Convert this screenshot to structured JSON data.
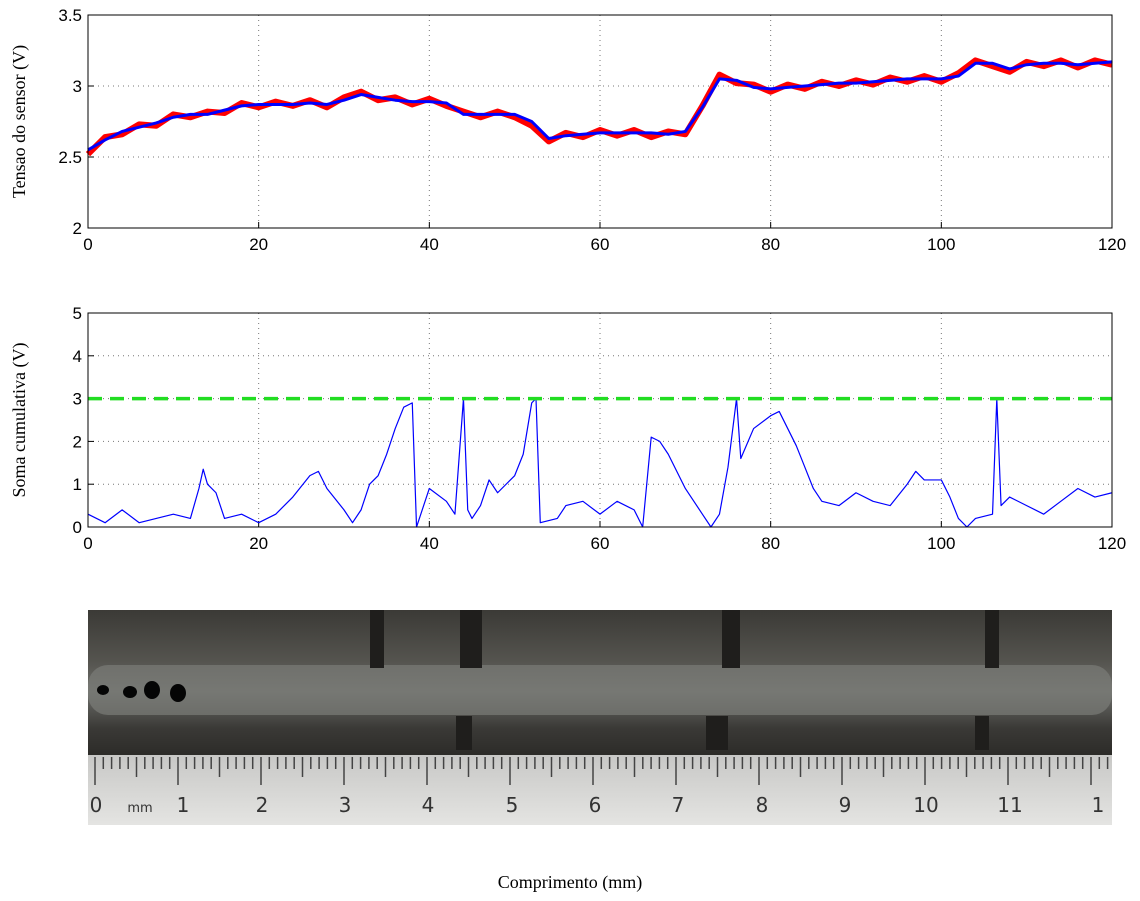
{
  "chart_data": [
    {
      "type": "line",
      "ylabel": "Tensao do sensor (V)",
      "x": [
        0,
        2,
        4,
        6,
        8,
        10,
        12,
        14,
        16,
        18,
        20,
        22,
        24,
        26,
        28,
        30,
        32,
        34,
        36,
        38,
        40,
        42,
        44,
        46,
        48,
        50,
        52,
        54,
        56,
        58,
        60,
        62,
        64,
        66,
        68,
        70,
        72,
        74,
        76,
        78,
        80,
        82,
        84,
        86,
        88,
        90,
        92,
        94,
        96,
        98,
        100,
        102,
        104,
        106,
        108,
        110,
        112,
        114,
        116,
        118,
        120
      ],
      "series": [
        {
          "color": "#ff0000",
          "values": [
            2.52,
            2.64,
            2.66,
            2.73,
            2.72,
            2.8,
            2.78,
            2.82,
            2.81,
            2.88,
            2.85,
            2.89,
            2.86,
            2.9,
            2.85,
            2.92,
            2.96,
            2.9,
            2.92,
            2.87,
            2.91,
            2.86,
            2.82,
            2.78,
            2.82,
            2.78,
            2.72,
            2.61,
            2.67,
            2.64,
            2.69,
            2.65,
            2.69,
            2.64,
            2.68,
            2.66,
            2.86,
            3.08,
            3.02,
            3.01,
            2.96,
            3.01,
            2.98,
            3.03,
            3.0,
            3.04,
            3.01,
            3.06,
            3.03,
            3.07,
            3.03,
            3.09,
            3.18,
            3.14,
            3.1,
            3.17,
            3.14,
            3.18,
            3.13,
            3.18,
            3.15
          ]
        },
        {
          "color": "#0000ff",
          "values": [
            2.55,
            2.62,
            2.68,
            2.71,
            2.74,
            2.78,
            2.8,
            2.8,
            2.83,
            2.86,
            2.87,
            2.87,
            2.87,
            2.88,
            2.87,
            2.9,
            2.94,
            2.92,
            2.9,
            2.89,
            2.89,
            2.88,
            2.8,
            2.8,
            2.8,
            2.8,
            2.75,
            2.63,
            2.65,
            2.66,
            2.67,
            2.67,
            2.67,
            2.67,
            2.66,
            2.68,
            2.85,
            3.05,
            3.04,
            2.99,
            2.98,
            2.99,
            3.0,
            3.01,
            3.02,
            3.02,
            3.03,
            3.04,
            3.05,
            3.05,
            3.05,
            3.07,
            3.16,
            3.16,
            3.12,
            3.15,
            3.16,
            3.16,
            3.15,
            3.16,
            3.17
          ]
        }
      ],
      "xlim": [
        0,
        120
      ],
      "xticks": [
        0,
        20,
        40,
        60,
        80,
        100,
        120
      ],
      "ylim": [
        2,
        3.5
      ],
      "yticks": [
        2,
        2.5,
        3,
        3.5
      ],
      "grid": true
    },
    {
      "type": "line",
      "ylabel": "Soma cumulativa (V)",
      "series": [
        {
          "color": "#0000ff",
          "x": [
            0,
            2,
            4,
            6,
            8,
            10,
            12,
            13,
            13.5,
            14,
            15,
            16,
            18,
            20,
            22,
            24,
            26,
            27,
            28,
            30,
            31,
            32,
            33,
            34,
            35,
            36,
            37,
            38,
            38.5,
            39,
            40,
            42,
            43,
            44,
            44.5,
            45,
            46,
            47,
            48,
            50,
            51,
            52,
            52.5,
            53,
            55,
            56,
            58,
            60,
            62,
            64,
            65,
            66,
            67,
            68,
            69,
            70,
            71,
            72,
            73,
            74,
            75,
            76,
            76.5,
            78,
            80,
            81,
            82,
            83,
            84,
            85,
            86,
            88,
            90,
            92,
            94,
            96,
            97,
            98,
            100,
            101,
            102,
            103,
            104,
            106,
            106.5,
            107,
            108,
            110,
            112,
            114,
            116,
            118,
            120
          ],
          "values": [
            0.3,
            0.1,
            0.4,
            0.1,
            0.2,
            0.3,
            0.2,
            0.9,
            1.35,
            1.0,
            0.8,
            0.2,
            0.3,
            0.1,
            0.3,
            0.7,
            1.2,
            1.3,
            0.9,
            0.4,
            0.1,
            0.4,
            1.0,
            1.2,
            1.7,
            2.3,
            2.8,
            2.9,
            0.0,
            0.3,
            0.9,
            0.6,
            0.3,
            3.0,
            0.4,
            0.2,
            0.5,
            1.1,
            0.8,
            1.2,
            1.7,
            2.9,
            3.0,
            0.1,
            0.2,
            0.5,
            0.6,
            0.3,
            0.6,
            0.4,
            0.0,
            2.1,
            2.0,
            1.7,
            1.3,
            0.9,
            0.6,
            0.3,
            0.0,
            0.3,
            1.4,
            3.0,
            1.6,
            2.3,
            2.6,
            2.7,
            2.3,
            1.9,
            1.4,
            0.9,
            0.6,
            0.5,
            0.8,
            0.6,
            0.5,
            1.0,
            1.3,
            1.1,
            1.1,
            0.7,
            0.2,
            0.0,
            0.2,
            0.3,
            3.0,
            0.5,
            0.7,
            0.5,
            0.3,
            0.6,
            0.9,
            0.7,
            0.8
          ]
        },
        {
          "color": "#22dd22",
          "dashed": true,
          "x": [
            0,
            120
          ],
          "values": [
            3,
            3
          ]
        }
      ],
      "xlim": [
        0,
        120
      ],
      "xticks": [
        0,
        20,
        40,
        60,
        80,
        100,
        120
      ],
      "ylim": [
        0,
        5
      ],
      "yticks": [
        0,
        1,
        2,
        3,
        4,
        5
      ],
      "grid": true
    }
  ],
  "xlabel": "Comprimento (mm)",
  "photo": {
    "ruler_labels": [
      "0",
      "mm",
      "1",
      "2",
      "3",
      "4",
      "5",
      "6",
      "7",
      "8",
      "9",
      "10",
      "11",
      "1"
    ]
  }
}
